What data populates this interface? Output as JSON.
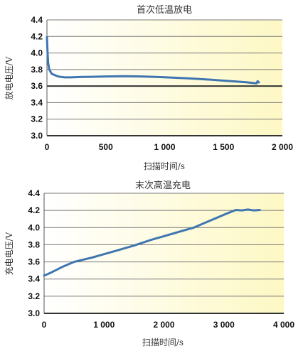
{
  "chart_data": [
    {
      "type": "line",
      "title": "首次低温放电",
      "xlabel": "扫描时间/s",
      "ylabel": "放电电压/V",
      "xlim": [
        0,
        2000
      ],
      "ylim": [
        3.0,
        4.4
      ],
      "xticks": [
        0,
        500,
        1000,
        1500,
        2000
      ],
      "xtick_labels": [
        "0",
        "500",
        "1 000",
        "1 500",
        "2 000"
      ],
      "yticks": [
        3.0,
        3.2,
        3.4,
        3.6,
        3.8,
        4.0,
        4.2,
        4.4
      ],
      "ytick_labels": [
        "3.0",
        "3.2",
        "3.4",
        "3.6",
        "3.8",
        "4.0",
        "4.2",
        "4.4"
      ],
      "grid": true,
      "background": "#fdf8c4",
      "line_color": "#3f75b0",
      "series": [
        {
          "x": [
            0,
            5,
            10,
            20,
            40,
            70,
            100,
            150,
            200,
            300,
            400,
            500,
            600,
            650,
            700,
            800,
            900,
            1000,
            1100,
            1200,
            1300,
            1400,
            1500,
            1600,
            1700,
            1780,
            1790,
            1800
          ],
          "y": [
            4.19,
            4.02,
            3.88,
            3.8,
            3.75,
            3.73,
            3.715,
            3.705,
            3.705,
            3.71,
            3.713,
            3.716,
            3.718,
            3.72,
            3.718,
            3.716,
            3.712,
            3.707,
            3.7,
            3.693,
            3.685,
            3.676,
            3.666,
            3.656,
            3.645,
            3.632,
            3.66,
            3.645
          ]
        }
      ]
    },
    {
      "type": "line",
      "title": "末次高温充电",
      "xlabel": "扫描时间/s",
      "ylabel": "充电电压/V",
      "xlim": [
        0,
        4000
      ],
      "ylim": [
        3.0,
        4.4
      ],
      "xticks": [
        0,
        1000,
        2000,
        3000,
        4000
      ],
      "xtick_labels": [
        "0",
        "1 000",
        "2 000",
        "3 000",
        "4 000"
      ],
      "yticks": [
        3.0,
        3.2,
        3.4,
        3.6,
        3.8,
        4.0,
        4.2,
        4.4
      ],
      "ytick_labels": [
        "3.0",
        "3.2",
        "3.4",
        "3.6",
        "3.8",
        "4.0",
        "4.2",
        "4.4"
      ],
      "grid": true,
      "background": "#fdf8c4",
      "line_color": "#3f75b0",
      "series": [
        {
          "x": [
            0,
            100,
            300,
            500,
            800,
            1000,
            1200,
            1500,
            1800,
            2000,
            2200,
            2500,
            2700,
            3000,
            3200,
            3300,
            3400,
            3500,
            3600
          ],
          "y": [
            3.44,
            3.47,
            3.54,
            3.6,
            3.65,
            3.69,
            3.73,
            3.79,
            3.86,
            3.9,
            3.94,
            4.0,
            4.06,
            4.15,
            4.205,
            4.2,
            4.21,
            4.2,
            4.205
          ]
        }
      ]
    }
  ]
}
